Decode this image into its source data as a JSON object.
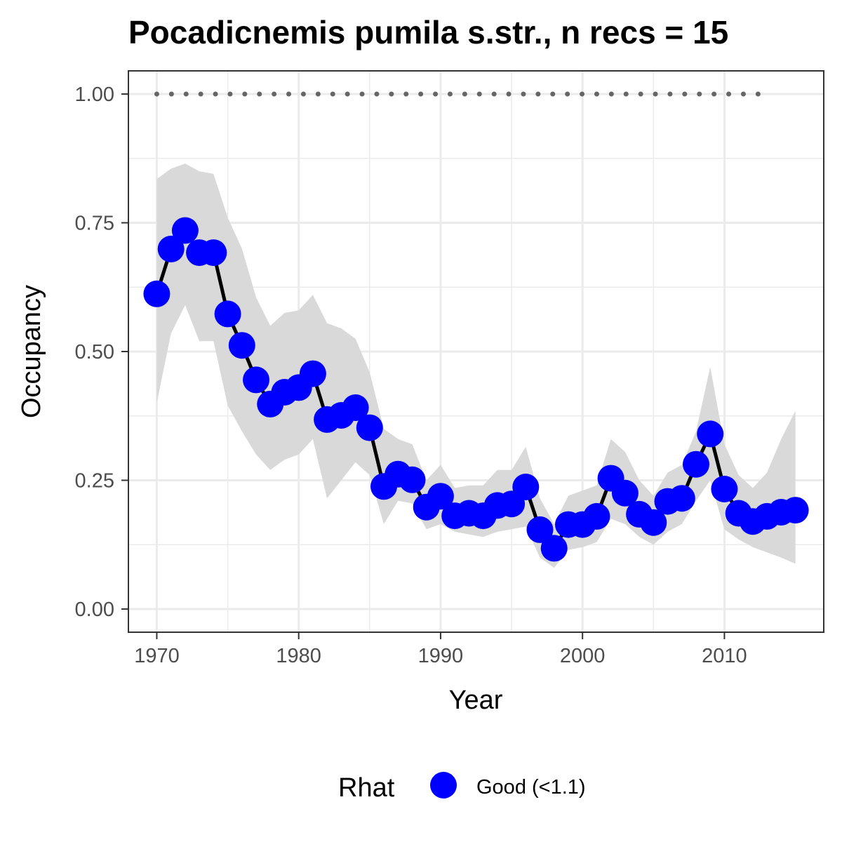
{
  "chart_data": {
    "type": "line",
    "title": "Pocadicnemis pumila s.str., n recs = 15",
    "xlabel": "Year",
    "ylabel": "Occupancy",
    "xlim": [
      1968,
      2017
    ],
    "ylim": [
      -0.045,
      1.045
    ],
    "x_ticks": [
      1970,
      1980,
      1990,
      2000,
      2010
    ],
    "x_tick_labels": [
      "1970",
      "1980",
      "1990",
      "2000",
      "2010"
    ],
    "y_ticks": [
      0,
      0.25,
      0.5,
      0.75,
      1.0
    ],
    "y_tick_labels": [
      "0.00",
      "0.25",
      "0.50",
      "0.75",
      "1.00"
    ],
    "grid": true,
    "colors": {
      "points": "#0000ff",
      "line": "#000000",
      "ribbon": "#d9d9d9",
      "reference": "#666666",
      "panel_border": "#333333",
      "grid": "#ebebeb"
    },
    "legend": {
      "title": "Rhat",
      "position": "bottom",
      "entries": [
        {
          "label": "Good (<1.1)",
          "color": "#0000ff"
        }
      ]
    },
    "reference_line": {
      "y": 1.0,
      "x_start": 1970,
      "x_end": 2013,
      "style": "dotted"
    },
    "series": [
      {
        "x": [
          1970,
          1971,
          1972,
          1973,
          1974,
          1975,
          1976,
          1977,
          1978,
          1979,
          1980,
          1981,
          1982,
          1983,
          1984,
          1985,
          1986,
          1987,
          1988,
          1989,
          1990,
          1991,
          1992,
          1993,
          1994,
          1995,
          1996,
          1997,
          1998,
          1999,
          2000,
          2001,
          2002,
          2003,
          2004,
          2005,
          2006,
          2007,
          2008,
          2009,
          2010,
          2011,
          2012,
          2013,
          2014,
          2015
        ],
        "y": [
          0.612,
          0.699,
          0.735,
          0.692,
          0.692,
          0.573,
          0.512,
          0.445,
          0.398,
          0.421,
          0.43,
          0.457,
          0.368,
          0.376,
          0.391,
          0.352,
          0.238,
          0.262,
          0.251,
          0.198,
          0.219,
          0.181,
          0.186,
          0.181,
          0.201,
          0.204,
          0.237,
          0.154,
          0.118,
          0.164,
          0.164,
          0.18,
          0.254,
          0.225,
          0.184,
          0.168,
          0.209,
          0.215,
          0.281,
          0.34,
          0.233,
          0.186,
          0.17,
          0.18,
          0.188,
          0.192
        ],
        "lower": [
          0.4,
          0.535,
          0.59,
          0.52,
          0.52,
          0.395,
          0.345,
          0.3,
          0.27,
          0.29,
          0.3,
          0.33,
          0.215,
          0.25,
          0.285,
          0.26,
          0.165,
          0.21,
          0.205,
          0.155,
          0.165,
          0.15,
          0.145,
          0.14,
          0.15,
          0.155,
          0.16,
          0.1,
          0.08,
          0.115,
          0.12,
          0.13,
          0.175,
          0.165,
          0.14,
          0.125,
          0.15,
          0.165,
          0.21,
          0.25,
          0.155,
          0.135,
          0.12,
          0.11,
          0.1,
          0.088
        ],
        "upper": [
          0.835,
          0.855,
          0.865,
          0.85,
          0.845,
          0.76,
          0.7,
          0.605,
          0.55,
          0.575,
          0.58,
          0.61,
          0.555,
          0.545,
          0.525,
          0.46,
          0.35,
          0.33,
          0.32,
          0.25,
          0.28,
          0.235,
          0.24,
          0.24,
          0.27,
          0.27,
          0.315,
          0.215,
          0.165,
          0.22,
          0.23,
          0.24,
          0.33,
          0.305,
          0.25,
          0.22,
          0.265,
          0.28,
          0.345,
          0.47,
          0.32,
          0.26,
          0.235,
          0.265,
          0.33,
          0.385
        ]
      }
    ]
  }
}
